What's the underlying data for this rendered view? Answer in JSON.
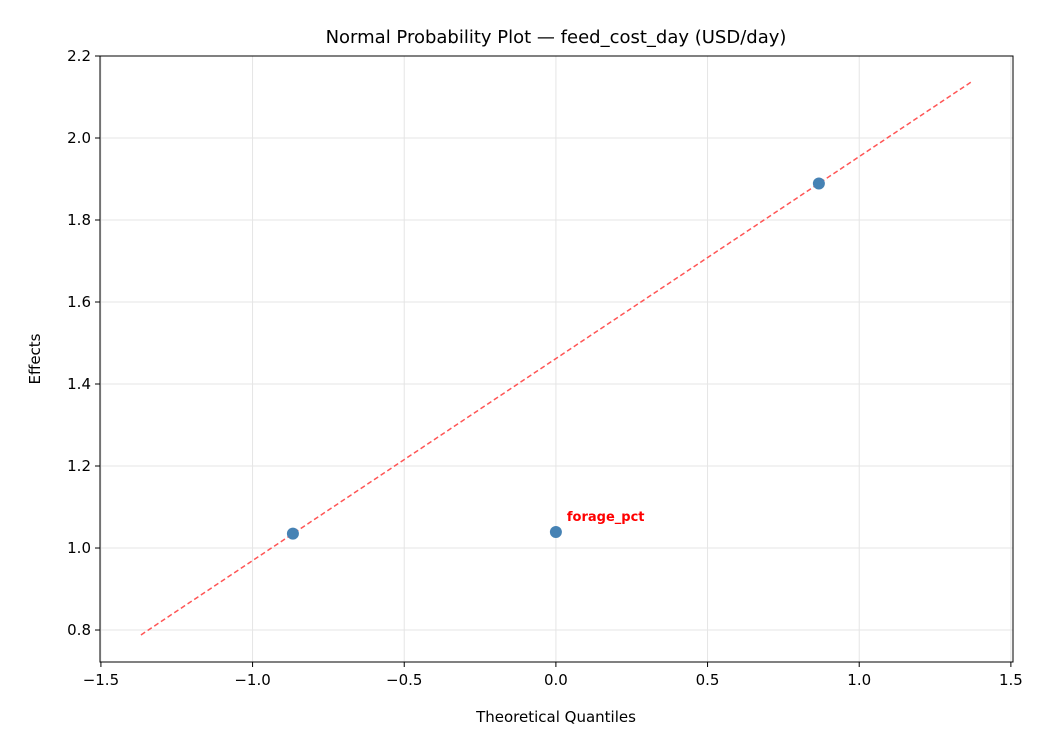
{
  "chart_data": {
    "type": "scatter",
    "title": "Normal Probability Plot — feed_cost_day (USD/day)",
    "xlabel": "Theoretical Quantiles",
    "ylabel": "Effects",
    "xlim": [
      -1.503,
      1.507
    ],
    "ylim": [
      0.722,
      2.2
    ],
    "xticks": [
      -1.5,
      -1.0,
      -0.5,
      0.0,
      0.5,
      1.0,
      1.5
    ],
    "xtick_labels": [
      "−1.5",
      "−1.0",
      "−0.5",
      "0.0",
      "0.5",
      "1.0",
      "1.5"
    ],
    "yticks": [
      0.8,
      1.0,
      1.2,
      1.4,
      1.6,
      1.8,
      2.0,
      2.2
    ],
    "ytick_labels": [
      "0.8",
      "1.0",
      "1.2",
      "1.4",
      "1.6",
      "1.8",
      "2.0",
      "2.2"
    ],
    "grid": true,
    "points": [
      {
        "x": -0.867,
        "y": 1.035,
        "label": ""
      },
      {
        "x": 0.0,
        "y": 1.039,
        "label": "forage_pct"
      },
      {
        "x": 0.867,
        "y": 1.889,
        "label": ""
      }
    ],
    "reference_line": {
      "x": [
        -1.368,
        1.368
      ],
      "y": [
        0.788,
        2.136
      ]
    },
    "colors": {
      "points": "#4682b4",
      "reference_line": "#ff5555",
      "annotation": "#ff0000"
    }
  }
}
